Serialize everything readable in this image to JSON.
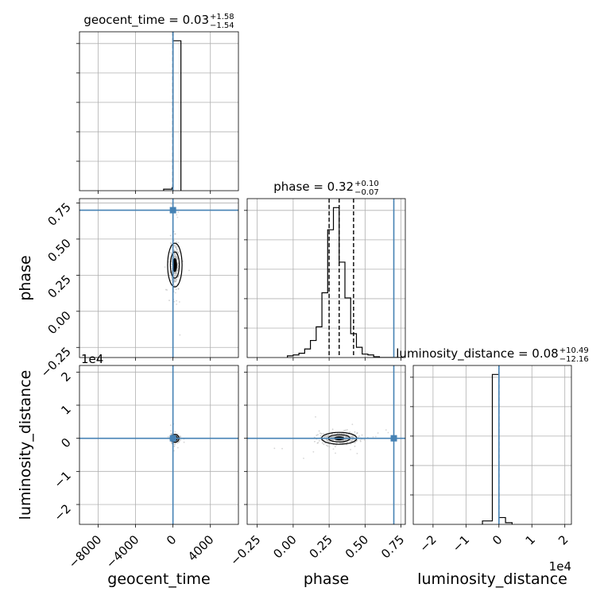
{
  "chart_data": {
    "type": "corner",
    "parameters": [
      "geocent_time",
      "phase",
      "luminosity_distance"
    ],
    "axis_labels": {
      "x": [
        "geocent_time",
        "phase",
        "luminosity_distance"
      ],
      "y": [
        "phase",
        "luminosity_distance"
      ]
    },
    "titles": [
      {
        "name": "geocent_time",
        "value": "0.03",
        "plus": "+1.58",
        "minus": "−1.54"
      },
      {
        "name": "phase",
        "value": "0.32",
        "plus": "+0.10",
        "minus": "−0.07"
      },
      {
        "name": "luminosity_distance",
        "value": "0.08",
        "plus": "+10.49",
        "minus": "−12.16"
      }
    ],
    "injection": {
      "geocent_time": 0.0,
      "phase": 0.7,
      "luminosity_distance": 0.0
    },
    "ranges": {
      "geocent_time": [
        -10000,
        7000
      ],
      "phase": [
        -0.32,
        0.78
      ],
      "luminosity_distance": [
        -26000,
        22000
      ]
    },
    "ticks": {
      "geocent_time": [
        -8000,
        -4000,
        0,
        4000
      ],
      "phase": [
        -0.25,
        0.0,
        0.25,
        0.5,
        0.75
      ],
      "luminosity_distance": [
        -2,
        -1,
        0,
        1,
        2
      ]
    },
    "tick_labels": {
      "geocent_time": [
        "−8000",
        "−4000",
        "0",
        "4000"
      ],
      "phase": [
        "−0.25",
        "0.00",
        "0.25",
        "0.50",
        "0.75"
      ],
      "luminosity_distance": [
        "−2",
        "−1",
        "0",
        "1",
        "2"
      ]
    },
    "offset_label": "1e4",
    "quantiles": {
      "geocent_time": [
        -1.51,
        0.03,
        1.61
      ],
      "phase": [
        0.25,
        0.32,
        0.42
      ],
      "luminosity_distance": [
        -12.08,
        0.08,
        10.57
      ]
    },
    "histograms": {
      "geocent_time": {
        "bin_edges": [
          -1000,
          -100,
          0,
          850
        ],
        "counts": [
          0.05,
          0.1,
          5.0
        ]
      },
      "phase": {
        "bin_edges": [
          -0.04,
          0.0,
          0.04,
          0.08,
          0.12,
          0.16,
          0.2,
          0.24,
          0.28,
          0.32,
          0.36,
          0.4,
          0.44,
          0.48,
          0.52,
          0.56,
          0.6,
          0.64,
          0.68,
          0.72,
          0.76
        ],
        "counts": [
          0.1,
          0.15,
          0.25,
          0.5,
          1.0,
          1.8,
          3.8,
          7.5,
          8.8,
          5.6,
          3.5,
          1.4,
          0.6,
          0.2,
          0.15,
          0.05,
          0.0,
          0.0,
          0.0,
          0.0
        ]
      },
      "luminosity_distance": {
        "bin_edges": [
          -5000,
          -2000,
          0,
          2000,
          4000
        ],
        "counts": [
          0.1,
          4.4,
          0.2,
          0.05
        ]
      }
    },
    "grid": true,
    "colors": {
      "injection": "#4682b4",
      "hist": "#000000",
      "points": "#bbbbbb",
      "grid": "#b0b0b0"
    }
  }
}
